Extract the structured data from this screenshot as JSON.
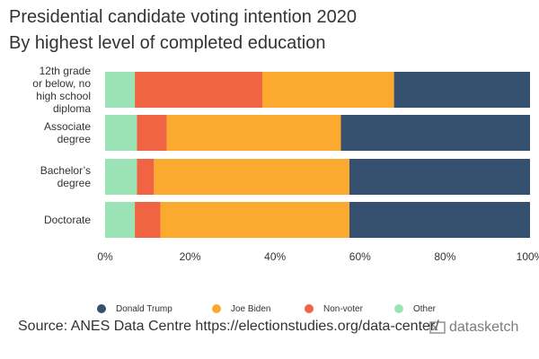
{
  "title": "Presidential candidate voting intention 2020",
  "subtitle": "By highest level of completed education",
  "source": "Source: ANES Data Centre https://electionstudies.org/data-center/",
  "brand": "datasketch",
  "colors": {
    "Donald Trump": "#36506f",
    "Joe Biden": "#fba92f",
    "Non-voter": "#f06443",
    "Other": "#9be3b4"
  },
  "chart_data": {
    "type": "bar",
    "orientation": "horizontal",
    "stacked": true,
    "title": "Presidential candidate voting intention 2020",
    "subtitle": "By highest level of completed education",
    "xlabel": "",
    "ylabel": "",
    "xlim": [
      0,
      100
    ],
    "x_ticks": [
      "0%",
      "20%",
      "40%",
      "60%",
      "80%",
      "100%"
    ],
    "grid": false,
    "legend_position": "bottom",
    "categories": [
      [
        "12th grade",
        "or below, no",
        "high school",
        "diploma"
      ],
      [
        "Associate",
        "degree"
      ],
      [
        "Bachelor’s",
        "degree"
      ],
      [
        "Doctorate"
      ]
    ],
    "series": [
      {
        "name": "Other",
        "values": [
          7,
          7.5,
          7.5,
          7
        ]
      },
      {
        "name": "Non-voter",
        "values": [
          30,
          7,
          4,
          6
        ]
      },
      {
        "name": "Joe Biden",
        "values": [
          31,
          41,
          46,
          44.5
        ]
      },
      {
        "name": "Donald Trump",
        "values": [
          32,
          44.5,
          42.5,
          42.5
        ]
      }
    ],
    "legend_order": [
      "Donald Trump",
      "Joe Biden",
      "Non-voter",
      "Other"
    ]
  }
}
